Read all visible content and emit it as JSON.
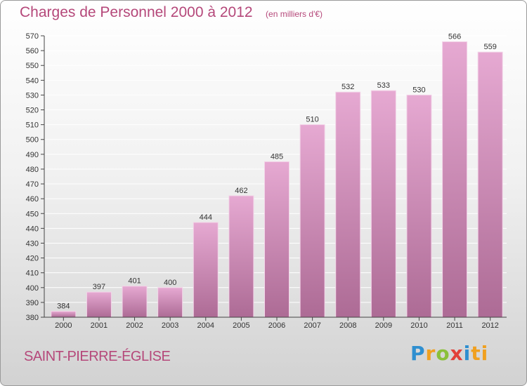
{
  "header": {
    "title": "Charges de Personnel 2000 à 2012",
    "unit": "(en milliers d'€)"
  },
  "commune": "SAINT-PIERRE-ÉGLISE",
  "logo": {
    "text": "Proxiti",
    "letters": [
      "P",
      "r",
      "o",
      "x",
      "i",
      "ti"
    ]
  },
  "colors": {
    "accent": "#b5487a",
    "bar_top": "#e6a9d2",
    "bar_bottom": "#ad6b95",
    "grid": "#ffffff"
  },
  "chart_data": {
    "type": "bar",
    "categories": [
      "2000",
      "2001",
      "2002",
      "2003",
      "2004",
      "2005",
      "2006",
      "2007",
      "2008",
      "2009",
      "2010",
      "2011",
      "2012"
    ],
    "values": [
      384,
      397,
      401,
      400,
      444,
      462,
      485,
      510,
      532,
      533,
      530,
      566,
      559
    ],
    "ylim": [
      380,
      570
    ],
    "yticks": [
      380,
      390,
      400,
      410,
      420,
      430,
      440,
      450,
      460,
      470,
      480,
      490,
      500,
      510,
      520,
      530,
      540,
      550,
      560,
      570
    ],
    "grid": true,
    "title": "Charges de Personnel 2000 à 2012",
    "xlabel": "",
    "ylabel": ""
  }
}
